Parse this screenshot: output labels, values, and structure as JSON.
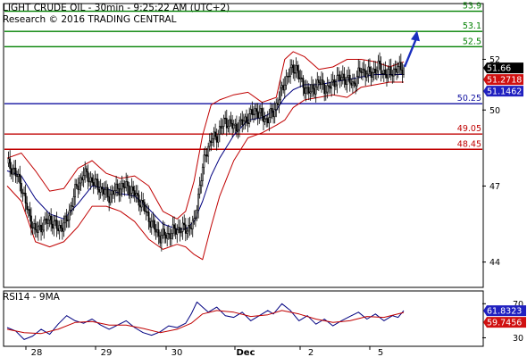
{
  "header": {
    "title": "LIGHT CRUDE OIL - 30min - 9:25:22 AM (UTC+2)",
    "copyright": "Research © 2016 TRADING CENTRAL"
  },
  "colors": {
    "support_line": "#1010a0",
    "resistance_line": "#008000",
    "pivot_line": "#c00000",
    "bollinger": "#c00000",
    "moving_average": "#000080",
    "candle": "#000000",
    "arrow": "#1b2fbf",
    "rsi": "#000080",
    "rsi_ma": "#c00000",
    "tag_last": "#000000",
    "tag_upper": "#d01010",
    "tag_ma": "#2020c0"
  },
  "chart_data": [
    {
      "type": "candlestick",
      "title": "LIGHT CRUDE OIL - 30min - 9:25:22 AM (UTC+2)",
      "x_tick_labels": [
        "28",
        "29",
        "30",
        "Dec",
        "2",
        "5"
      ],
      "y_tick_labels": [
        "52",
        "50",
        "47",
        "44"
      ],
      "ylim": [
        43.0,
        54.2
      ],
      "levels": [
        {
          "value": 53.9,
          "label": "53.9",
          "kind": "resistance",
          "color": "#008000"
        },
        {
          "value": 53.1,
          "label": "53.1",
          "kind": "resistance",
          "color": "#008000"
        },
        {
          "value": 52.5,
          "label": "52.5",
          "kind": "resistance",
          "color": "#008000"
        },
        {
          "value": 50.25,
          "label": "50.25",
          "kind": "pivot",
          "color": "#1010a0"
        },
        {
          "value": 49.05,
          "label": "49.05",
          "kind": "support",
          "color": "#c00000"
        },
        {
          "value": 48.45,
          "label": "48.45",
          "kind": "support",
          "color": "#c00000"
        }
      ],
      "value_tags": [
        {
          "label": "51.66",
          "value": 51.66,
          "color": "#000000"
        },
        {
          "label": "51.2718",
          "value": 51.2718,
          "color": "#d01010"
        },
        {
          "label": "51.1462",
          "value": 51.1462,
          "color": "#2020c0"
        }
      ],
      "arrow": {
        "from_value": 51.7,
        "to_value": 53.1,
        "direction": "up"
      },
      "close_path": [
        [
          0,
          47.9
        ],
        [
          5,
          47.6
        ],
        [
          10,
          47.0
        ],
        [
          15,
          45.9
        ],
        [
          20,
          45.2
        ],
        [
          24,
          45.4
        ],
        [
          30,
          45.7
        ],
        [
          36,
          45.3
        ],
        [
          42,
          45.6
        ],
        [
          48,
          46.8
        ],
        [
          54,
          47.5
        ],
        [
          60,
          47.2
        ],
        [
          66,
          46.9
        ],
        [
          72,
          46.6
        ],
        [
          78,
          46.9
        ],
        [
          84,
          47.0
        ],
        [
          90,
          46.7
        ],
        [
          96,
          46.2
        ],
        [
          102,
          45.5
        ],
        [
          108,
          45.0
        ],
        [
          114,
          45.1
        ],
        [
          120,
          45.3
        ],
        [
          126,
          45.3
        ],
        [
          132,
          45.5
        ],
        [
          136,
          47.0
        ],
        [
          140,
          48.3
        ],
        [
          144,
          48.8
        ],
        [
          148,
          49.0
        ],
        [
          154,
          49.6
        ],
        [
          160,
          49.3
        ],
        [
          166,
          49.5
        ],
        [
          172,
          49.8
        ],
        [
          176,
          50.0
        ],
        [
          182,
          49.6
        ],
        [
          188,
          49.9
        ],
        [
          192,
          50.5
        ],
        [
          198,
          51.4
        ],
        [
          204,
          51.7
        ],
        [
          208,
          51.0
        ],
        [
          214,
          50.7
        ],
        [
          220,
          51.1
        ],
        [
          226,
          50.8
        ],
        [
          232,
          51.2
        ],
        [
          238,
          51.3
        ],
        [
          244,
          51.0
        ],
        [
          250,
          51.6
        ],
        [
          256,
          51.4
        ],
        [
          262,
          51.7
        ],
        [
          268,
          51.4
        ],
        [
          274,
          51.6
        ],
        [
          280,
          51.66
        ]
      ],
      "bollinger_upper": [
        [
          0,
          48.1
        ],
        [
          10,
          48.3
        ],
        [
          20,
          47.6
        ],
        [
          30,
          46.8
        ],
        [
          40,
          46.9
        ],
        [
          50,
          47.7
        ],
        [
          60,
          48.0
        ],
        [
          70,
          47.5
        ],
        [
          80,
          47.3
        ],
        [
          90,
          47.4
        ],
        [
          100,
          47.0
        ],
        [
          110,
          46.0
        ],
        [
          120,
          45.7
        ],
        [
          126,
          46.0
        ],
        [
          132,
          47.2
        ],
        [
          138,
          49.0
        ],
        [
          144,
          50.2
        ],
        [
          150,
          50.4
        ],
        [
          160,
          50.6
        ],
        [
          170,
          50.7
        ],
        [
          180,
          50.3
        ],
        [
          190,
          50.5
        ],
        [
          196,
          52.0
        ],
        [
          202,
          52.3
        ],
        [
          210,
          52.1
        ],
        [
          220,
          51.6
        ],
        [
          230,
          51.7
        ],
        [
          240,
          52.0
        ],
        [
          250,
          52.0
        ],
        [
          260,
          51.9
        ],
        [
          270,
          51.7
        ],
        [
          280,
          51.9
        ]
      ],
      "bollinger_lower": [
        [
          0,
          47.0
        ],
        [
          10,
          46.4
        ],
        [
          20,
          44.8
        ],
        [
          30,
          44.6
        ],
        [
          40,
          44.8
        ],
        [
          50,
          45.4
        ],
        [
          60,
          46.2
        ],
        [
          70,
          46.2
        ],
        [
          80,
          46.0
        ],
        [
          90,
          45.6
        ],
        [
          100,
          44.9
        ],
        [
          110,
          44.5
        ],
        [
          120,
          44.7
        ],
        [
          126,
          44.6
        ],
        [
          132,
          44.3
        ],
        [
          138,
          44.1
        ],
        [
          144,
          45.4
        ],
        [
          150,
          46.6
        ],
        [
          160,
          48.0
        ],
        [
          170,
          48.9
        ],
        [
          180,
          49.1
        ],
        [
          190,
          49.4
        ],
        [
          196,
          49.6
        ],
        [
          202,
          50.1
        ],
        [
          210,
          50.4
        ],
        [
          220,
          50.5
        ],
        [
          230,
          50.6
        ],
        [
          240,
          50.5
        ],
        [
          250,
          50.9
        ],
        [
          260,
          51.0
        ],
        [
          270,
          51.1
        ],
        [
          280,
          51.1
        ]
      ],
      "moving_average": [
        [
          0,
          47.6
        ],
        [
          10,
          47.4
        ],
        [
          20,
          46.5
        ],
        [
          30,
          45.9
        ],
        [
          40,
          45.7
        ],
        [
          50,
          46.3
        ],
        [
          60,
          47.0
        ],
        [
          70,
          46.9
        ],
        [
          80,
          46.7
        ],
        [
          90,
          46.6
        ],
        [
          100,
          46.1
        ],
        [
          110,
          45.5
        ],
        [
          120,
          45.3
        ],
        [
          126,
          45.3
        ],
        [
          132,
          45.6
        ],
        [
          138,
          46.4
        ],
        [
          144,
          47.4
        ],
        [
          150,
          48.1
        ],
        [
          160,
          49.0
        ],
        [
          170,
          49.6
        ],
        [
          180,
          49.7
        ],
        [
          190,
          50.0
        ],
        [
          196,
          50.5
        ],
        [
          202,
          50.8
        ],
        [
          210,
          51.0
        ],
        [
          220,
          51.0
        ],
        [
          230,
          51.1
        ],
        [
          240,
          51.2
        ],
        [
          250,
          51.3
        ],
        [
          260,
          51.4
        ],
        [
          270,
          51.4
        ],
        [
          280,
          51.4
        ]
      ]
    },
    {
      "type": "line",
      "title": "RSI14 - 9MA",
      "y_tick_labels": [
        "70",
        "30"
      ],
      "ylim": [
        20,
        85
      ],
      "value_tags": [
        {
          "label": "61.8323",
          "value": 61.8323,
          "color": "#2020c0"
        },
        {
          "label": "59.7456",
          "value": 59.7456,
          "color": "#d01010"
        }
      ],
      "series": [
        {
          "name": "RSI14",
          "color": "#000080",
          "points": [
            [
              0,
              42
            ],
            [
              6,
              38
            ],
            [
              12,
              28
            ],
            [
              18,
              32
            ],
            [
              24,
              40
            ],
            [
              30,
              34
            ],
            [
              36,
              46
            ],
            [
              42,
              56
            ],
            [
              48,
              50
            ],
            [
              54,
              47
            ],
            [
              60,
              52
            ],
            [
              66,
              45
            ],
            [
              72,
              40
            ],
            [
              78,
              45
            ],
            [
              84,
              50
            ],
            [
              90,
              42
            ],
            [
              96,
              36
            ],
            [
              102,
              33
            ],
            [
              108,
              37
            ],
            [
              114,
              44
            ],
            [
              120,
              42
            ],
            [
              126,
              47
            ],
            [
              130,
              58
            ],
            [
              134,
              72
            ],
            [
              138,
              66
            ],
            [
              142,
              60
            ],
            [
              148,
              66
            ],
            [
              154,
              56
            ],
            [
              160,
              54
            ],
            [
              166,
              60
            ],
            [
              172,
              50
            ],
            [
              178,
              56
            ],
            [
              184,
              62
            ],
            [
              188,
              58
            ],
            [
              194,
              70
            ],
            [
              200,
              62
            ],
            [
              206,
              50
            ],
            [
              212,
              56
            ],
            [
              218,
              46
            ],
            [
              224,
              52
            ],
            [
              230,
              44
            ],
            [
              236,
              50
            ],
            [
              242,
              55
            ],
            [
              248,
              60
            ],
            [
              254,
              52
            ],
            [
              260,
              58
            ],
            [
              266,
              50
            ],
            [
              272,
              56
            ],
            [
              276,
              54
            ],
            [
              280,
              61.8
            ]
          ]
        },
        {
          "name": "9MA",
          "color": "#c00000",
          "points": [
            [
              0,
              40
            ],
            [
              12,
              36
            ],
            [
              24,
              35
            ],
            [
              36,
              40
            ],
            [
              48,
              48
            ],
            [
              60,
              49
            ],
            [
              72,
              45
            ],
            [
              84,
              45
            ],
            [
              96,
              41
            ],
            [
              108,
              36
            ],
            [
              120,
              40
            ],
            [
              130,
              47
            ],
            [
              138,
              58
            ],
            [
              148,
              62
            ],
            [
              160,
              60
            ],
            [
              172,
              55
            ],
            [
              184,
              57
            ],
            [
              194,
              62
            ],
            [
              206,
              58
            ],
            [
              218,
              52
            ],
            [
              230,
              48
            ],
            [
              242,
              50
            ],
            [
              254,
              55
            ],
            [
              266,
              54
            ],
            [
              280,
              59.7
            ]
          ]
        }
      ]
    }
  ]
}
